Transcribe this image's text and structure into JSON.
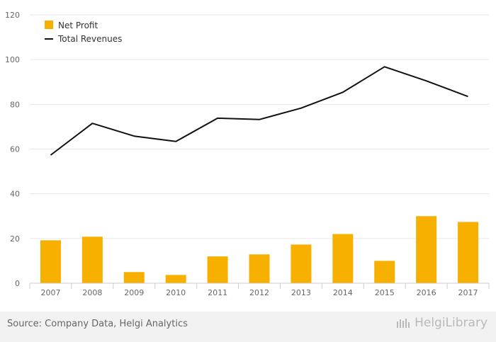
{
  "chart_data": {
    "type": "bar+line",
    "categories": [
      "2007",
      "2008",
      "2009",
      "2010",
      "2011",
      "2012",
      "2013",
      "2014",
      "2015",
      "2016",
      "2017"
    ],
    "series": [
      {
        "name": "Net Profit",
        "type": "bar",
        "color": "#f7b000",
        "values": [
          19.2,
          20.8,
          5.0,
          3.7,
          12.0,
          12.9,
          17.3,
          22.0,
          10.0,
          30.0,
          27.4
        ]
      },
      {
        "name": "Total Revenues",
        "type": "line",
        "color": "#111111",
        "values": [
          57.3,
          71.5,
          65.8,
          63.4,
          73.8,
          73.2,
          78.3,
          85.4,
          96.8,
          90.5,
          83.5
        ]
      }
    ],
    "ylim": [
      0,
      120
    ],
    "yticks": [
      0,
      20,
      40,
      60,
      80,
      100,
      120
    ],
    "grid": true,
    "legend_position": "top-left"
  },
  "footer": {
    "source": "Source: Company Data, Helgi Analytics",
    "brand": "HelgiLibrary"
  }
}
